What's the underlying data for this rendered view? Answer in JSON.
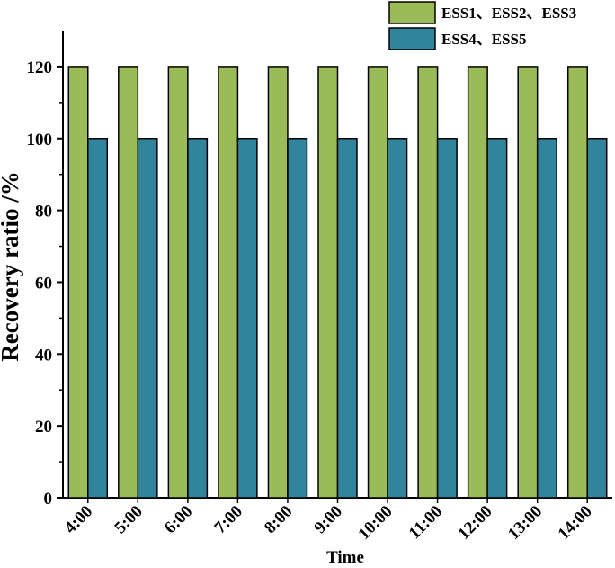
{
  "chart_data": {
    "type": "bar",
    "x_label": "Time",
    "y_label": "Recovery ratio /%",
    "categories": [
      "4:00",
      "5:00",
      "6:00",
      "7:00",
      "8:00",
      "9:00",
      "10:00",
      "11:00",
      "12:00",
      "13:00",
      "14:00"
    ],
    "series": [
      {
        "name": "ESS1、ESS2、ESS3",
        "color": "#9bbb59",
        "values": [
          120,
          120,
          120,
          120,
          120,
          120,
          120,
          120,
          120,
          120,
          120
        ]
      },
      {
        "name": "ESS4、ESS5",
        "color": "#31849b",
        "values": [
          100,
          100,
          100,
          100,
          100,
          100,
          100,
          100,
          100,
          100,
          100
        ]
      }
    ],
    "ylim": [
      0,
      130
    ],
    "yticks": [
      0,
      20,
      40,
      60,
      80,
      100,
      120
    ],
    "legend": "top-right"
  }
}
